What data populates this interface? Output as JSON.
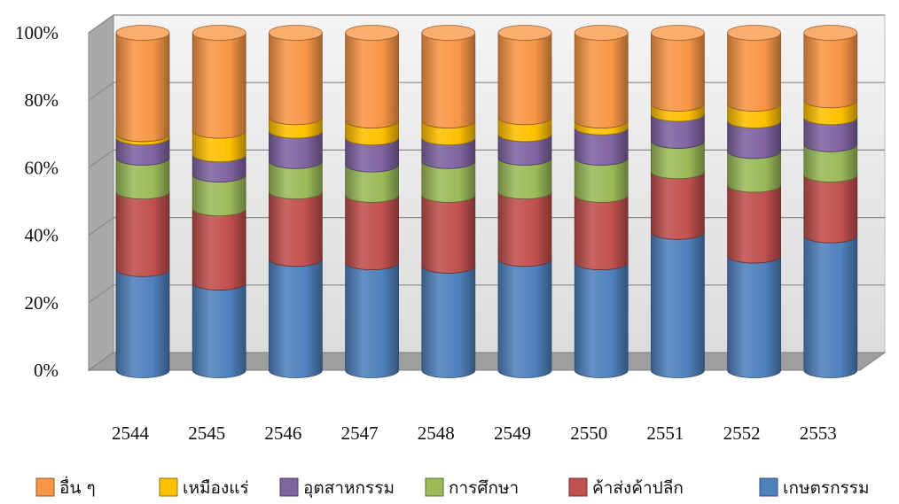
{
  "chart_data": {
    "type": "bar",
    "stacked": "percent",
    "categories": [
      "2544",
      "2545",
      "2546",
      "2547",
      "2548",
      "2549",
      "2550",
      "2551",
      "2552",
      "2553"
    ],
    "y_tick_labels": [
      "0%",
      "20%",
      "40%",
      "60%",
      "80%",
      "100%"
    ],
    "ylim": [
      0,
      100
    ],
    "grid": true,
    "legend_position": "bottom",
    "series": [
      {
        "name": "เกษตรกรรม",
        "color": "#4f81bd",
        "values": [
          30,
          26,
          33,
          32,
          31,
          33,
          32,
          41,
          34,
          40
        ]
      },
      {
        "name": "ค้าส่งค้าปลีก",
        "color": "#c0504d",
        "values": [
          23,
          22,
          20,
          20,
          21,
          20,
          20,
          18,
          21,
          18
        ]
      },
      {
        "name": "การศึกษา",
        "color": "#9bbb59",
        "values": [
          10,
          10,
          9,
          9,
          10,
          10,
          11,
          9,
          10,
          9
        ]
      },
      {
        "name": "อุตสาหกรรม",
        "color": "#8064a2",
        "values": [
          6,
          6,
          9,
          8,
          7,
          7,
          9,
          8,
          9,
          8
        ]
      },
      {
        "name": "เหมืองแร่",
        "color": "#ffc000",
        "values": [
          1,
          7,
          4,
          5,
          5,
          5,
          2,
          3,
          5,
          5
        ]
      },
      {
        "name": "อื่น ๆ",
        "color": "#f79646",
        "values": [
          30,
          29,
          25,
          26,
          26,
          25,
          26,
          21,
          21,
          20
        ]
      }
    ],
    "legend_order": [
      "อื่น ๆ",
      "เหมืองแร่",
      "อุตสาหกรรม",
      "การศึกษา",
      "ค้าส่งค้าปลีก",
      "เกษตรกรรม"
    ]
  }
}
